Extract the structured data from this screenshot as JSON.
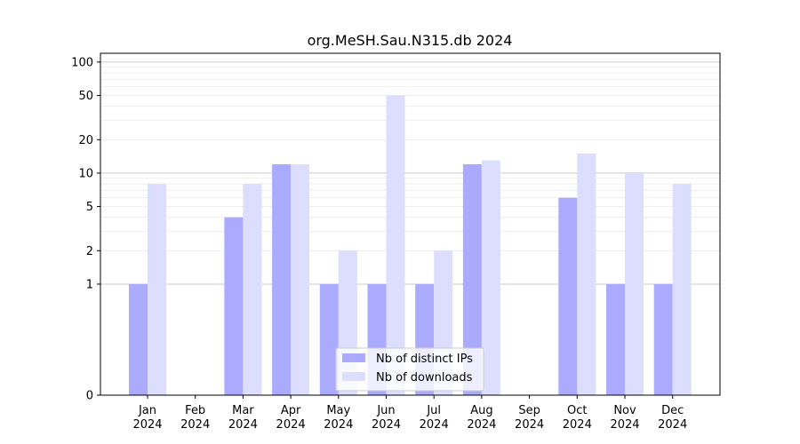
{
  "chart_data": {
    "type": "bar",
    "title": "org.MeSH.Sau.N315.db 2024",
    "xlabel": "",
    "ylabel": "",
    "yscale": "symlog",
    "ylim": [
      0,
      120
    ],
    "yticks": [
      0,
      1,
      2,
      5,
      10,
      20,
      50,
      100
    ],
    "ytick_labels": [
      "0",
      "1",
      "2",
      "5",
      "10",
      "20",
      "50",
      "100"
    ],
    "grid": true,
    "legend_position": "bottom-center",
    "categories": [
      "Jan",
      "Feb",
      "Mar",
      "Apr",
      "May",
      "Jun",
      "Jul",
      "Aug",
      "Sep",
      "Oct",
      "Nov",
      "Dec"
    ],
    "category_year": "2024",
    "series": [
      {
        "name": "Nb of distinct IPs",
        "color": "#aaaaff",
        "values": [
          1,
          0,
          4,
          12,
          1,
          1,
          1,
          12,
          0,
          6,
          1,
          1
        ]
      },
      {
        "name": "Nb of downloads",
        "color": "#ddddff",
        "values": [
          8,
          0,
          8,
          12,
          2,
          50,
          2,
          13,
          0,
          15,
          10,
          8
        ]
      }
    ]
  }
}
